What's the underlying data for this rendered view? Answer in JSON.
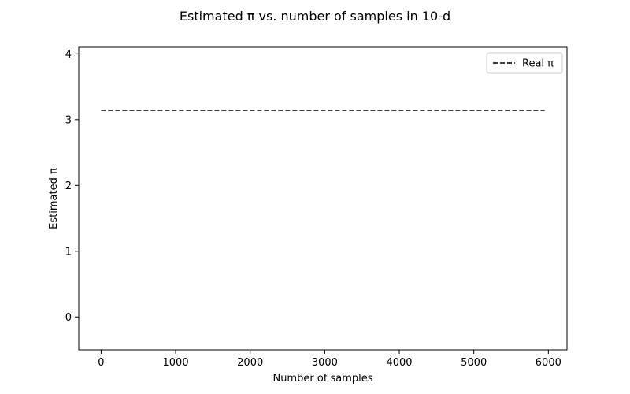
{
  "chart_data": {
    "type": "line",
    "title": "Estimated π vs. number of samples in 10-d",
    "xlabel": "Number of samples",
    "ylabel": "Estimated π",
    "xlim": [
      -300,
      6250
    ],
    "ylim": [
      -0.5,
      4.1
    ],
    "xticks": [
      0,
      1000,
      2000,
      3000,
      4000,
      5000,
      6000
    ],
    "yticks": [
      0,
      1,
      2,
      3,
      4
    ],
    "xtick_labels": [
      "0",
      "1000",
      "2000",
      "3000",
      "4000",
      "5000",
      "6000"
    ],
    "ytick_labels": [
      "0",
      "1",
      "2",
      "3",
      "4"
    ],
    "grid": false,
    "legend_position": "top-right",
    "series": [
      {
        "name": "Real π",
        "x": [
          0,
          5950
        ],
        "y": [
          3.14159,
          3.14159
        ],
        "style": "dashed",
        "color": "#000000"
      }
    ]
  }
}
